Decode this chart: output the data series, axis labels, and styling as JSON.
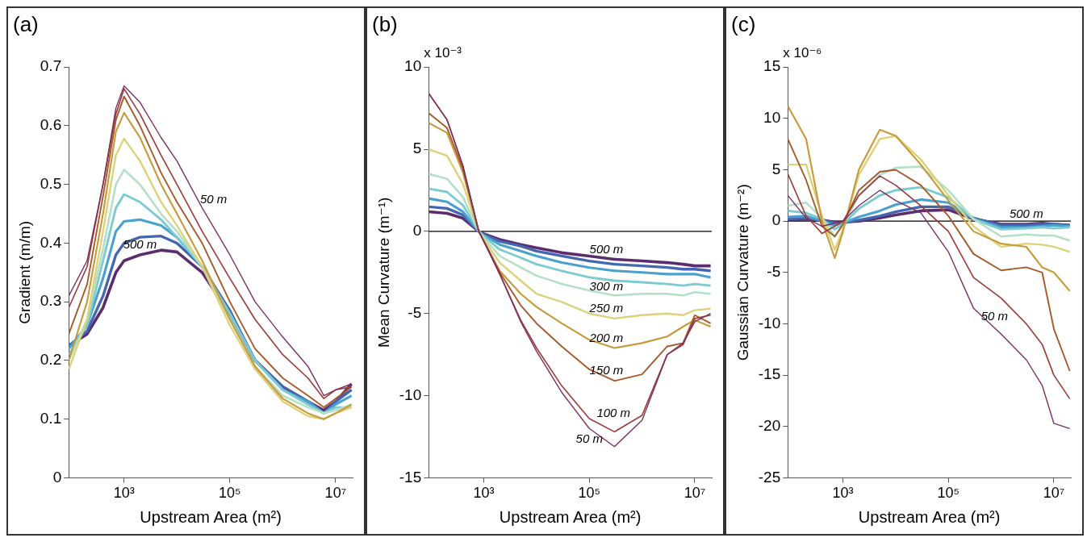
{
  "chart_data": [
    {
      "type": "line",
      "title": "(a)",
      "xlabel": "Upstream Area (m²)",
      "ylabel": "Gradient (m/m)",
      "log": "x",
      "x": [
        90,
        200,
        400,
        700,
        1000,
        2000,
        5000,
        10000,
        30000,
        100000,
        300000,
        1000000,
        3000000,
        6000000,
        10000000,
        20000000
      ],
      "xlim": [
        90,
        21000000
      ],
      "xticks": [
        {
          "value": 1000,
          "label": "10³"
        },
        {
          "value": 100000,
          "label": "10⁵"
        },
        {
          "value": 10000000,
          "label": "10⁷"
        }
      ],
      "ylim": [
        0,
        0.7
      ],
      "yticks": [
        0,
        0.1,
        0.2,
        0.3,
        0.4,
        0.5,
        0.6,
        0.7
      ],
      "series": [
        {
          "name": "50 m",
          "color": "#7b3060",
          "values": [
            0.31,
            0.37,
            0.5,
            0.63,
            0.668,
            0.64,
            0.58,
            0.54,
            0.46,
            0.38,
            0.3,
            0.24,
            0.19,
            0.14,
            0.15,
            0.16
          ]
        },
        {
          "color": "#9c3c3c",
          "values": [
            0.29,
            0.36,
            0.5,
            0.62,
            0.663,
            0.62,
            0.55,
            0.5,
            0.42,
            0.34,
            0.27,
            0.21,
            0.17,
            0.135,
            0.15,
            0.155
          ]
        },
        {
          "color": "#a65a2a",
          "values": [
            0.245,
            0.33,
            0.48,
            0.61,
            0.65,
            0.6,
            0.52,
            0.47,
            0.4,
            0.3,
            0.22,
            0.17,
            0.14,
            0.12,
            0.135,
            0.155
          ]
        },
        {
          "color": "#c99a3a",
          "values": [
            0.2,
            0.3,
            0.45,
            0.59,
            0.622,
            0.58,
            0.5,
            0.45,
            0.37,
            0.27,
            0.19,
            0.135,
            0.11,
            0.1,
            0.11,
            0.125
          ]
        },
        {
          "color": "#dcd27a",
          "values": [
            0.185,
            0.27,
            0.42,
            0.55,
            0.578,
            0.54,
            0.47,
            0.43,
            0.36,
            0.26,
            0.185,
            0.13,
            0.105,
            0.1,
            0.11,
            0.12
          ]
        },
        {
          "color": "#b4e0c8",
          "values": [
            0.2,
            0.27,
            0.39,
            0.5,
            0.525,
            0.5,
            0.45,
            0.42,
            0.36,
            0.27,
            0.19,
            0.14,
            0.12,
            0.11,
            0.115,
            0.125
          ]
        },
        {
          "color": "#7ccbd0",
          "values": [
            0.21,
            0.26,
            0.37,
            0.46,
            0.483,
            0.47,
            0.44,
            0.41,
            0.36,
            0.28,
            0.2,
            0.15,
            0.125,
            0.11,
            0.12,
            0.12
          ]
        },
        {
          "color": "#4aa0cf",
          "values": [
            0.22,
            0.26,
            0.34,
            0.42,
            0.437,
            0.44,
            0.43,
            0.41,
            0.36,
            0.28,
            0.2,
            0.15,
            0.13,
            0.11,
            0.125,
            0.14
          ]
        },
        {
          "color": "#4466b0",
          "values": [
            0.225,
            0.25,
            0.31,
            0.38,
            0.4,
            0.41,
            0.412,
            0.4,
            0.36,
            0.285,
            0.2,
            0.155,
            0.13,
            0.11,
            0.13,
            0.15
          ]
        },
        {
          "name": "500 m",
          "color": "#5c2d6e",
          "values": [
            0.225,
            0.245,
            0.29,
            0.35,
            0.37,
            0.38,
            0.388,
            0.385,
            0.35,
            0.28,
            0.2,
            0.155,
            0.13,
            0.115,
            0.13,
            0.16
          ]
        }
      ]
    },
    {
      "type": "line",
      "title": "(b)",
      "xlabel": "Upstream Area (m²)",
      "ylabel": "Mean Curvature (m⁻¹)",
      "log": "x",
      "annotations": [
        "x 10⁻³"
      ],
      "x": [
        90,
        200,
        400,
        800,
        1000,
        2000,
        5000,
        10000,
        30000,
        100000,
        300000,
        1000000,
        3000000,
        6000000,
        10000000,
        20000000
      ],
      "xlim": [
        90,
        21000000
      ],
      "xticks": [
        {
          "value": 1000,
          "label": "10³"
        },
        {
          "value": 100000,
          "label": "10⁵"
        },
        {
          "value": 10000000,
          "label": "10⁷"
        }
      ],
      "ylim": [
        -15,
        10
      ],
      "yticks": [
        -15,
        -10,
        -5,
        0,
        5,
        10
      ],
      "ref_lines": [
        {
          "axis": "y",
          "value": 0,
          "color": "#000000"
        }
      ],
      "series": [
        {
          "name": "50 m",
          "color": "#7b3060",
          "values": [
            8.4,
            6.8,
            4.0,
            0,
            -0.6,
            -2.6,
            -5.5,
            -7.3,
            -9.8,
            -12,
            -13.1,
            -11.5,
            -7.5,
            -6.8,
            -5.5,
            -5.0
          ]
        },
        {
          "name": "100 m",
          "color": "#9c3c3c",
          "values": [
            8.4,
            6.8,
            4.0,
            0,
            -0.6,
            -2.6,
            -5.4,
            -7.1,
            -9.4,
            -11.4,
            -12.2,
            -11.2,
            -7.5,
            -6.9,
            -5.3,
            -5.1
          ]
        },
        {
          "name": "150 m",
          "color": "#a65a2a",
          "values": [
            7.2,
            6.3,
            3.8,
            0,
            -0.6,
            -2.5,
            -4.5,
            -5.6,
            -7.0,
            -8.4,
            -9.1,
            -8.7,
            -7.0,
            -6.8,
            -5.1,
            -5.6
          ]
        },
        {
          "name": "200 m",
          "color": "#c99a3a",
          "values": [
            6.6,
            6.0,
            3.6,
            0,
            -0.6,
            -2.4,
            -3.8,
            -4.6,
            -5.6,
            -6.6,
            -7.1,
            -6.8,
            -6.4,
            -5.8,
            -5.4,
            -5.8
          ]
        },
        {
          "name": "250 m",
          "color": "#dcd27a",
          "values": [
            5.0,
            4.6,
            2.9,
            0,
            -0.5,
            -1.9,
            -3.0,
            -3.8,
            -4.3,
            -5.0,
            -5.3,
            -5.1,
            -5.0,
            -5.1,
            -4.8,
            -4.7
          ]
        },
        {
          "name": "300 m",
          "color": "#b4e0c8",
          "values": [
            3.5,
            3.2,
            2.1,
            0,
            -0.4,
            -1.5,
            -2.2,
            -2.7,
            -3.2,
            -3.6,
            -3.9,
            -3.8,
            -3.8,
            -3.9,
            -3.7,
            -3.8
          ]
        },
        {
          "color": "#7ccbd0",
          "values": [
            2.6,
            2.4,
            1.6,
            0,
            -0.3,
            -1.1,
            -1.6,
            -2.0,
            -2.4,
            -2.8,
            -3.0,
            -3.1,
            -3.2,
            -3.3,
            -3.2,
            -3.3
          ]
        },
        {
          "color": "#4aa0cf",
          "values": [
            2.0,
            1.8,
            1.2,
            0,
            -0.25,
            -0.8,
            -1.2,
            -1.5,
            -1.9,
            -2.2,
            -2.4,
            -2.5,
            -2.6,
            -2.6,
            -2.6,
            -2.8
          ]
        },
        {
          "color": "#4466b0",
          "values": [
            1.5,
            1.4,
            1.0,
            0,
            -0.2,
            -0.6,
            -0.9,
            -1.2,
            -1.5,
            -1.8,
            -2.0,
            -2.1,
            -2.2,
            -2.3,
            -2.3,
            -2.4
          ]
        },
        {
          "name": "500 m",
          "color": "#5c2d6e",
          "values": [
            1.2,
            1.1,
            0.8,
            0,
            -0.15,
            -0.5,
            -0.8,
            -1.0,
            -1.3,
            -1.5,
            -1.7,
            -1.8,
            -1.9,
            -2.0,
            -2.1,
            -2.1
          ]
        }
      ]
    },
    {
      "type": "line",
      "title": "(c)",
      "xlabel": "Upstream Area (m²)",
      "ylabel": "Gaussian Curvature (m⁻²)",
      "log": "x",
      "annotations": [
        "x 10⁻⁶"
      ],
      "x": [
        90,
        200,
        400,
        700,
        1000,
        2000,
        5000,
        10000,
        30000,
        100000,
        300000,
        1000000,
        3000000,
        6000000,
        10000000,
        20000000
      ],
      "xlim": [
        90,
        21000000
      ],
      "xticks": [
        {
          "value": 1000,
          "label": "10³"
        },
        {
          "value": 100000,
          "label": "10⁵"
        },
        {
          "value": 10000000,
          "label": "10⁷"
        }
      ],
      "ylim": [
        -25,
        15
      ],
      "yticks": [
        -25,
        -20,
        -15,
        -10,
        -5,
        0,
        5,
        10,
        15
      ],
      "ref_lines": [
        {
          "axis": "y",
          "value": 0,
          "color": "#000000"
        }
      ],
      "series": [
        {
          "name": "50 m",
          "color": "#7b3060",
          "values": [
            2.5,
            0.3,
            -0.5,
            -0.2,
            0,
            1.5,
            3.0,
            2.0,
            0.8,
            -3,
            -8.5,
            -11,
            -13.5,
            -16,
            -19.7,
            -20.2
          ]
        },
        {
          "color": "#9c3c3c",
          "values": [
            4.6,
            0.5,
            -1.2,
            -0.5,
            0,
            2.5,
            4.4,
            3.5,
            1.5,
            -1,
            -5.5,
            -7.5,
            -10,
            -12,
            -15,
            -17.3
          ]
        },
        {
          "color": "#a65a2a",
          "values": [
            8,
            4,
            -0.5,
            -1.5,
            -0.3,
            3,
            4.8,
            5.0,
            3.5,
            0.5,
            -3.2,
            -4.8,
            -4.5,
            -5.0,
            -10.5,
            -14.6
          ]
        },
        {
          "color": "#c99a3a",
          "values": [
            11.2,
            8,
            0,
            -3.6,
            -1.0,
            5.0,
            8.9,
            8.3,
            5.5,
            2.0,
            -1.0,
            -2.2,
            -2.5,
            -4.5,
            -5.0,
            -6.8
          ]
        },
        {
          "color": "#dcd27a",
          "values": [
            5.5,
            5.5,
            0.5,
            -2.8,
            -0.8,
            4.5,
            8.0,
            8.3,
            6.0,
            2.5,
            -0.5,
            -2.5,
            -2.2,
            -2.3,
            -2.5,
            -3.0
          ]
        },
        {
          "color": "#b4e0c8",
          "values": [
            1.5,
            1.8,
            0.3,
            -1.5,
            -0.4,
            2.5,
            4.5,
            5.2,
            5.3,
            3.0,
            0.2,
            -1.5,
            -1.3,
            -1.4,
            -1.4,
            -1.9
          ]
        },
        {
          "color": "#7ccbd0",
          "values": [
            1.0,
            0.8,
            0.2,
            -0.8,
            -0.3,
            1.2,
            2.5,
            3.0,
            3.3,
            2.3,
            0.2,
            -0.8,
            -0.7,
            -0.6,
            -0.7,
            -0.6
          ]
        },
        {
          "color": "#4aa0cf",
          "values": [
            0.4,
            0.5,
            0,
            -0.4,
            -0.2,
            0.4,
            1.0,
            1.6,
            2.1,
            1.8,
            0.2,
            -0.6,
            -0.6,
            -0.5,
            -0.4,
            -0.5
          ]
        },
        {
          "color": "#4466b0",
          "values": [
            0.2,
            0.3,
            0.1,
            -0.2,
            -0.2,
            0.1,
            0.5,
            0.9,
            1.4,
            1.4,
            0.3,
            -0.4,
            -0.4,
            -0.3,
            -0.3,
            -0.4
          ]
        },
        {
          "name": "500 m",
          "color": "#5c2d6e",
          "values": [
            0.1,
            0.2,
            0.1,
            -0.1,
            -0.1,
            0,
            0.3,
            0.6,
            1.0,
            1.1,
            0.2,
            -0.3,
            -0.3,
            -0.2,
            -0.3,
            -0.4
          ]
        }
      ]
    }
  ]
}
